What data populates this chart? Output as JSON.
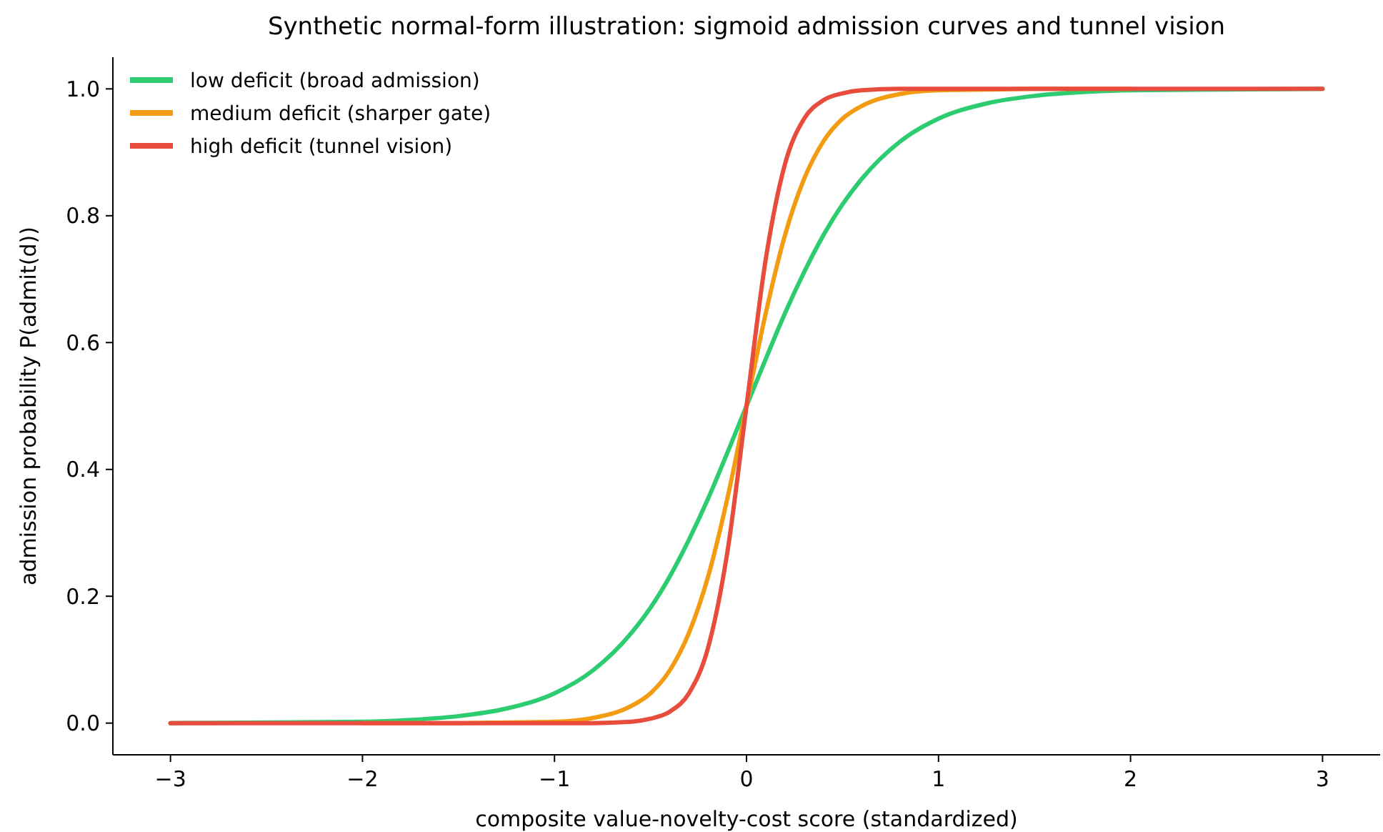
{
  "chart_data": {
    "type": "line",
    "title": "Synthetic normal-form illustration: sigmoid admission curves and tunnel vision",
    "xlabel": "composite value-novelty-cost score (standardized)",
    "ylabel": "admission probability P(admit(d))",
    "x": [
      -3,
      -2.5,
      -2,
      -1.75,
      -1.5,
      -1.25,
      -1,
      -0.8,
      -0.6,
      -0.5,
      -0.4,
      -0.3,
      -0.2,
      -0.1,
      0,
      0.1,
      0.2,
      0.3,
      0.4,
      0.5,
      0.6,
      0.8,
      1,
      1.25,
      1.5,
      1.75,
      2,
      2.5,
      3
    ],
    "series": [
      {
        "name": "low deficit (broad admission)",
        "color": "#2ecc71",
        "values": [
          0.0,
          0.001,
          0.002,
          0.005,
          0.011,
          0.023,
          0.047,
          0.083,
          0.142,
          0.182,
          0.231,
          0.289,
          0.354,
          0.426,
          0.5,
          0.574,
          0.646,
          0.711,
          0.769,
          0.818,
          0.858,
          0.917,
          0.953,
          0.977,
          0.989,
          0.995,
          0.998,
          0.999,
          1.0
        ]
      },
      {
        "name": "medium deficit (sharper gate)",
        "color": "#f39c12",
        "values": [
          null,
          null,
          0.0,
          0.0,
          0.0,
          0.001,
          0.002,
          0.008,
          0.027,
          0.047,
          0.083,
          0.142,
          0.231,
          0.354,
          0.5,
          0.646,
          0.769,
          0.858,
          0.917,
          0.953,
          0.973,
          0.992,
          0.998,
          0.999,
          1.0,
          1.0,
          1.0,
          null,
          null
        ]
      },
      {
        "name": "high deficit (tunnel vision)",
        "color": "#e74c3c",
        "values": [
          0.0,
          0.0,
          0.0,
          0.0,
          0.0,
          0.0,
          0.0,
          0.0,
          0.002,
          0.007,
          0.018,
          0.047,
          0.119,
          0.269,
          0.5,
          0.731,
          0.881,
          0.953,
          0.982,
          0.993,
          0.998,
          1.0,
          1.0,
          1.0,
          1.0,
          1.0,
          1.0,
          1.0,
          1.0
        ]
      }
    ],
    "xlim": [
      -3.3,
      3.3
    ],
    "ylim": [
      -0.05,
      1.05
    ],
    "xticks": [
      {
        "value": -3,
        "label": "−3"
      },
      {
        "value": -2,
        "label": "−2"
      },
      {
        "value": -1,
        "label": "−1"
      },
      0,
      1,
      2,
      3
    ],
    "yticks": [
      {
        "value": 0,
        "label": "0.0"
      },
      {
        "value": 0.2,
        "label": "0.2"
      },
      {
        "value": 0.4,
        "label": "0.4"
      },
      {
        "value": 0.6,
        "label": "0.6"
      },
      {
        "value": 0.8,
        "label": "0.8"
      },
      {
        "value": 1,
        "label": "1.0"
      }
    ],
    "legend": "top left",
    "grid": false,
    "line_style": "solid",
    "marker": "none"
  }
}
